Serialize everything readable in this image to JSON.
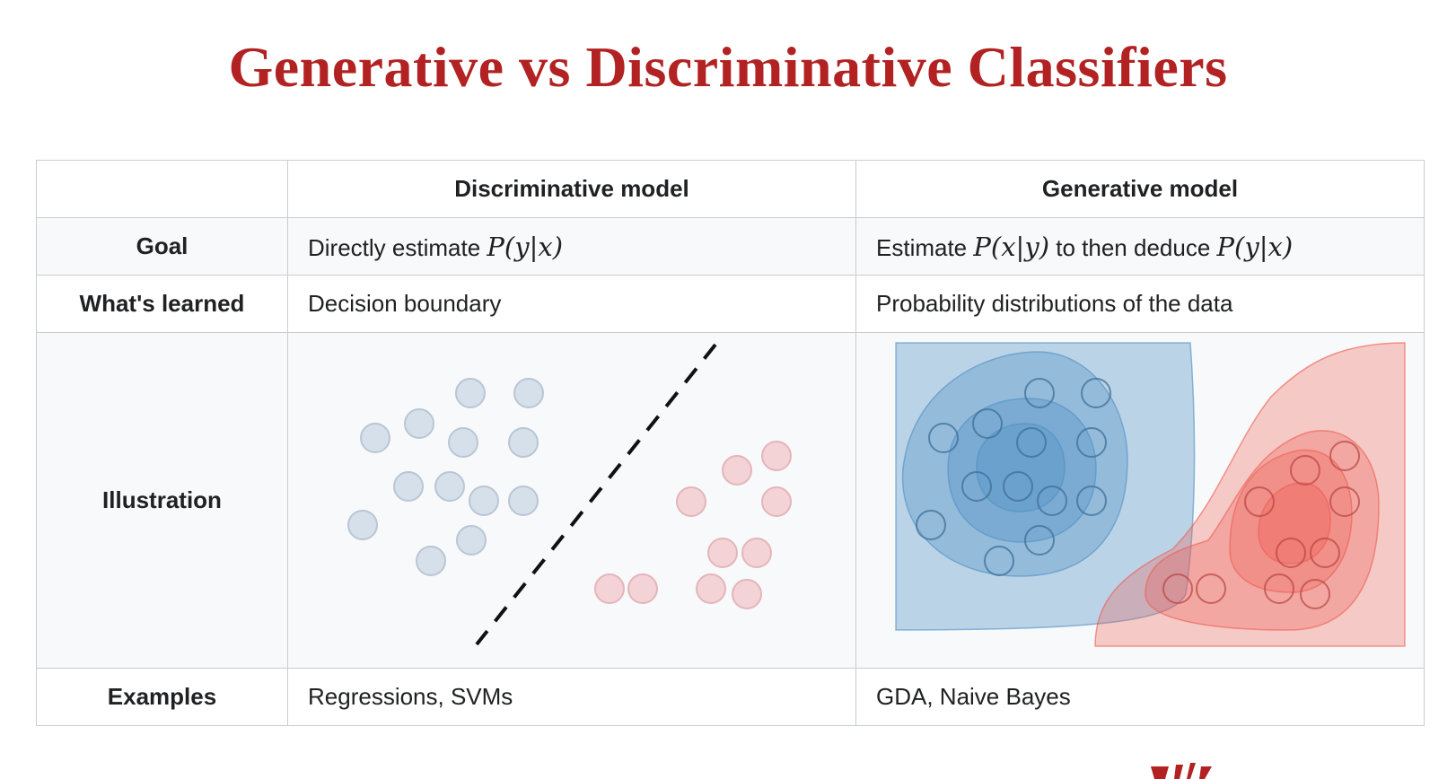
{
  "title": "Generative vs Discriminative Classifiers",
  "table": {
    "headers": [
      "",
      "Discriminative model",
      "Generative model"
    ],
    "rows": {
      "goal": {
        "label": "Goal",
        "discriminative": {
          "text": "Directly estimate ",
          "math": "P(y|x)"
        },
        "generative": {
          "text1": "Estimate ",
          "math1": "P(x|y)",
          "text2": " to then deduce ",
          "math2": "P(y|x)"
        }
      },
      "learned": {
        "label": "What's learned",
        "discriminative": "Decision boundary",
        "generative": "Probability distributions of the data"
      },
      "illustration": {
        "label": "Illustration"
      },
      "examples": {
        "label": "Examples",
        "discriminative": "Regressions, SVMs",
        "generative": "GDA, Naive Bayes"
      }
    }
  },
  "colors": {
    "title": "#b22222",
    "class_a": "#d6e0eb",
    "class_b": "#f3d3d6",
    "blue_region": "#4f8fc5",
    "red_region": "#ef5b50"
  }
}
